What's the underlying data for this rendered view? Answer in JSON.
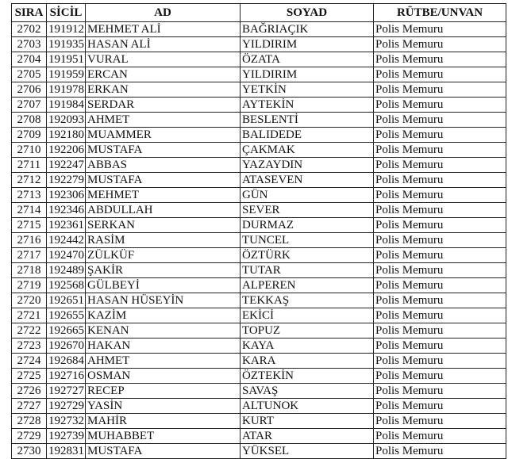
{
  "headers": [
    "SIRA",
    "SİCİL",
    "AD",
    "SOYAD",
    "RÜTBE/UNVAN"
  ],
  "rows": [
    [
      "2702",
      "191912",
      "MEHMET ALİ",
      "BAĞRIAÇIK",
      "Polis Memuru"
    ],
    [
      "2703",
      "191935",
      "HASAN ALİ",
      "YILDIRIM",
      "Polis Memuru"
    ],
    [
      "2704",
      "191951",
      "VURAL",
      "ÖZATA",
      "Polis Memuru"
    ],
    [
      "2705",
      "191959",
      "ERCAN",
      "YILDIRIM",
      "Polis Memuru"
    ],
    [
      "2706",
      "191978",
      "ERKAN",
      "YETKİN",
      "Polis Memuru"
    ],
    [
      "2707",
      "191984",
      "SERDAR",
      "AYTEKİN",
      "Polis Memuru"
    ],
    [
      "2708",
      "192093",
      "AHMET",
      "BESLENTİ",
      "Polis Memuru"
    ],
    [
      "2709",
      "192180",
      "MUAMMER",
      "BALIDEDE",
      "Polis Memuru"
    ],
    [
      "2710",
      "192206",
      "MUSTAFA",
      "ÇAKMAK",
      "Polis Memuru"
    ],
    [
      "2711",
      "192247",
      "ABBAS",
      "YAZAYDIN",
      "Polis Memuru"
    ],
    [
      "2712",
      "192279",
      "MUSTAFA",
      "ATASEVEN",
      "Polis Memuru"
    ],
    [
      "2713",
      "192306",
      "MEHMET",
      "GÜN",
      "Polis Memuru"
    ],
    [
      "2714",
      "192346",
      "ABDULLAH",
      "SEVER",
      "Polis Memuru"
    ],
    [
      "2715",
      "192361",
      "SERKAN",
      "DURMAZ",
      "Polis Memuru"
    ],
    [
      "2716",
      "192442",
      "RASİM",
      "TUNCEL",
      "Polis Memuru"
    ],
    [
      "2717",
      "192470",
      "ZÜLKÜF",
      "ÖZTÜRK",
      "Polis Memuru"
    ],
    [
      "2718",
      "192489",
      "ŞAKİR",
      "TUTAR",
      "Polis Memuru"
    ],
    [
      "2719",
      "192568",
      "GÜLBEYİ",
      "ALPEREN",
      "Polis Memuru"
    ],
    [
      "2720",
      "192651",
      "HASAN HÜSEYİN",
      "TEKKAŞ",
      "Polis Memuru"
    ],
    [
      "2721",
      "192655",
      "KAZİM",
      "EKİCİ",
      "Polis Memuru"
    ],
    [
      "2722",
      "192665",
      "KENAN",
      "TOPUZ",
      "Polis Memuru"
    ],
    [
      "2723",
      "192670",
      "HAKAN",
      "KAYA",
      "Polis Memuru"
    ],
    [
      "2724",
      "192684",
      "AHMET",
      "KARA",
      "Polis Memuru"
    ],
    [
      "2725",
      "192716",
      "OSMAN",
      "ÖZTEKİN",
      "Polis Memuru"
    ],
    [
      "2726",
      "192727",
      "RECEP",
      "SAVAŞ",
      "Polis Memuru"
    ],
    [
      "2727",
      "192729",
      "YASİN",
      "ALTUNOK",
      "Polis Memuru"
    ],
    [
      "2728",
      "192732",
      "MAHİR",
      "KURT",
      "Polis Memuru"
    ],
    [
      "2729",
      "192739",
      "MUHABBET",
      "ATAR",
      "Polis Memuru"
    ],
    [
      "2730",
      "192831",
      "MUSTAFA",
      "YÜKSEL",
      "Polis Memuru"
    ]
  ]
}
